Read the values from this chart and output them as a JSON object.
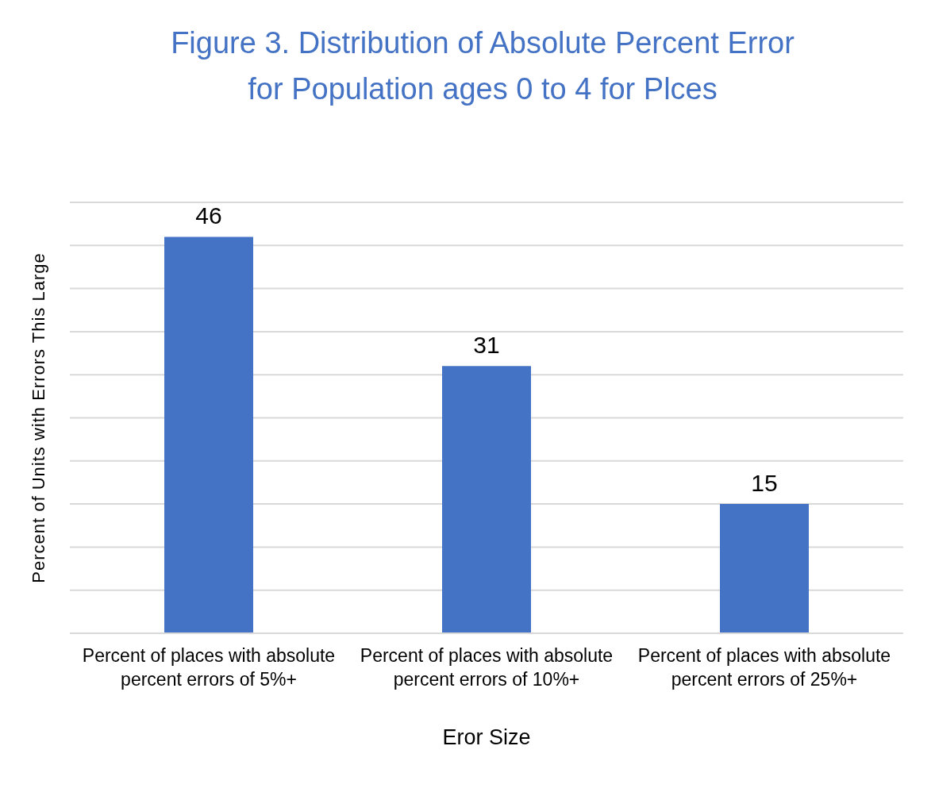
{
  "chart_data": {
    "type": "bar",
    "title": "Figure 3. Distribution of Absolute Percent Error for Population ages 0 to 4 for Plces",
    "xlabel": "Eror Size",
    "ylabel": "Percent of Units with Errors This Large",
    "categories": [
      "Percent of places with absolute percent errors of 5%+",
      "Percent of places with absolute percent errors of 10%+",
      "Percent of places with absolute percent errors of 25%+"
    ],
    "values": [
      46,
      31,
      15
    ],
    "color": "#4472c4",
    "ylim": [
      0,
      50
    ],
    "yticks": [
      {
        "value": 0,
        "label": null
      },
      {
        "value": 5,
        "label": null
      },
      {
        "value": 10,
        "label": null
      },
      {
        "value": 15,
        "label": null
      },
      {
        "value": 20,
        "label": null
      },
      {
        "value": 25,
        "label": null
      },
      {
        "value": 30,
        "label": null
      },
      {
        "value": 35,
        "label": null
      },
      {
        "value": 40,
        "label": null
      },
      {
        "value": 45,
        "label": null
      },
      {
        "value": 50,
        "label": null
      }
    ],
    "tick_labels": "x",
    "grid": "y",
    "data_labels": true
  }
}
